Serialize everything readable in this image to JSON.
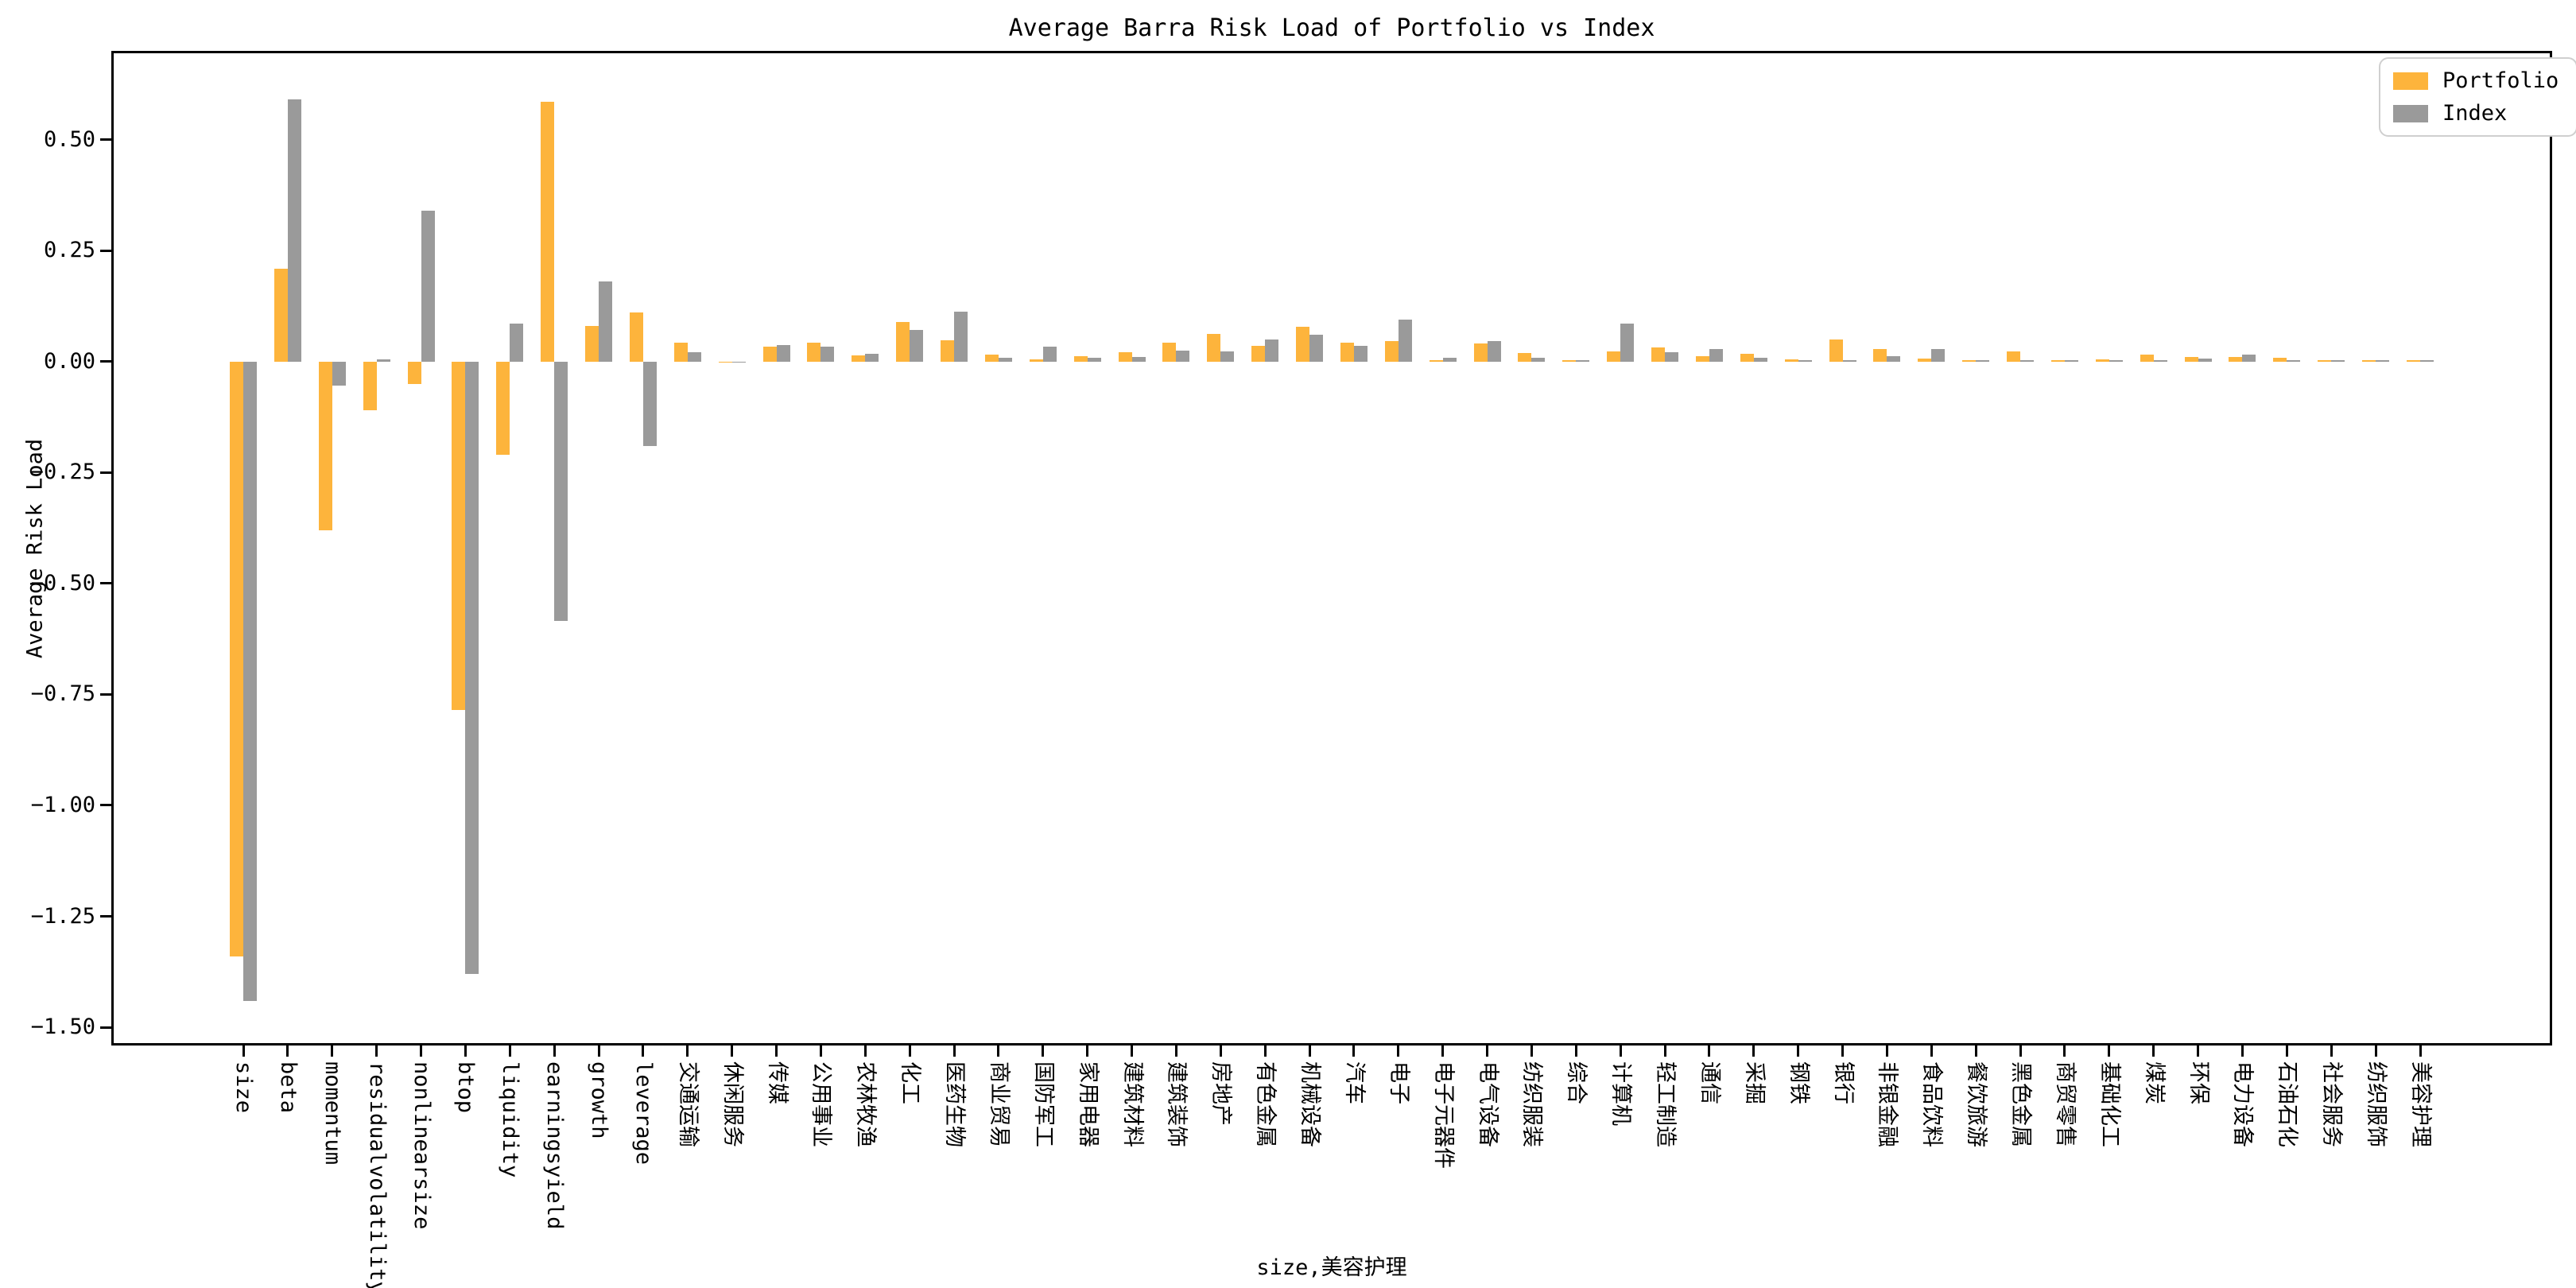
{
  "chart_data": {
    "type": "bar",
    "title": "Average Barra Risk Load of Portfolio vs Index",
    "xlabel": "size,美容护理",
    "ylabel": "Average Risk Load",
    "ylim": [
      -1.541,
      0.7
    ],
    "yticks": [
      0.5,
      0.25,
      0.0,
      -0.25,
      -0.5,
      -0.75,
      -1.0,
      -1.25,
      -1.5
    ],
    "grid": false,
    "legend_position": "upper right",
    "background": "#ffffff",
    "categories": [
      "size",
      "beta",
      "momentum",
      "residualvolatility",
      "nonlinearsize",
      "btop",
      "liquidity",
      "earningsyield",
      "growth",
      "leverage",
      "交通运输",
      "休闲服务",
      "传媒",
      "公用事业",
      "农林牧渔",
      "化工",
      "医药生物",
      "商业贸易",
      "国防军工",
      "家用电器",
      "建筑材料",
      "建筑装饰",
      "房地产",
      "有色金属",
      "机械设备",
      "汽车",
      "电子",
      "电子元器件",
      "电气设备",
      "纺织服装",
      "综合",
      "计算机",
      "轻工制造",
      "通信",
      "采掘",
      "钢铁",
      "银行",
      "非银金融",
      "食品饮料",
      "餐饮旅游",
      "黑色金属",
      "商贸零售",
      "基础化工",
      "煤炭",
      "环保",
      "电力设备",
      "石油石化",
      "社会服务",
      "纺织服饰",
      "美容护理"
    ],
    "series": [
      {
        "name": "Portfolio",
        "color": "#FDB43C",
        "values": [
          -1.34,
          0.21,
          -0.38,
          -0.11,
          -0.05,
          -0.785,
          -0.21,
          0.585,
          0.08,
          0.11,
          0.042,
          -0.003,
          0.034,
          0.043,
          0.014,
          0.089,
          0.048,
          0.015,
          0.005,
          0.012,
          0.021,
          0.043,
          0.063,
          0.036,
          0.078,
          0.042,
          0.047,
          0.004,
          0.041,
          0.02,
          0.003,
          0.023,
          0.032,
          0.012,
          0.017,
          0.005,
          0.05,
          0.028,
          0.007,
          0.001,
          0.022,
          0.002,
          0.005,
          0.015,
          0.01,
          0.01,
          0.008,
          0.001,
          0.003,
          0.001
        ]
      },
      {
        "name": "Index",
        "color": "#9A9A9A",
        "values": [
          -1.44,
          0.59,
          -0.055,
          0.005,
          0.34,
          -1.38,
          0.085,
          -0.585,
          0.18,
          -0.19,
          0.021,
          -0.003,
          0.038,
          0.034,
          0.018,
          0.071,
          0.112,
          0.008,
          0.034,
          0.009,
          0.01,
          0.025,
          0.023,
          0.05,
          0.061,
          0.035,
          0.094,
          0.008,
          0.046,
          0.008,
          0.004,
          0.085,
          0.021,
          0.028,
          0.008,
          0.002,
          0.004,
          0.013,
          0.029,
          0.001,
          0.004,
          0.001,
          0.003,
          0.004,
          0.007,
          0.015,
          0.001,
          0.002,
          0.001,
          0.002
        ]
      }
    ]
  }
}
